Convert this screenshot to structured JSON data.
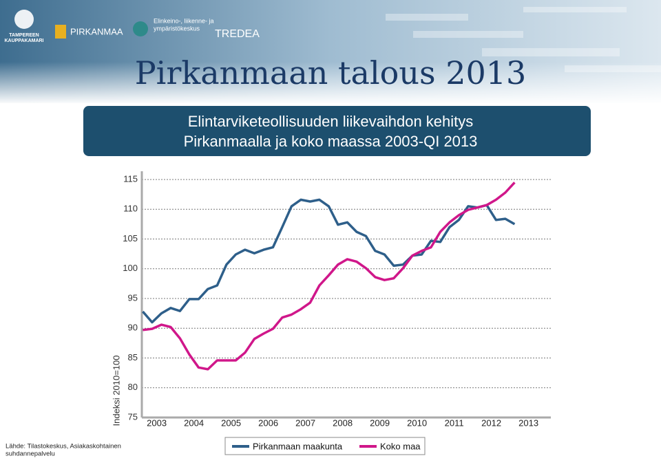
{
  "header": {
    "logos": [
      "TAMPEREEN",
      "KAUPPAKAMARI",
      "PIRKANMAA",
      "Elinkeino-, liikenne- ja",
      "ympäristökeskus",
      "TREDEA"
    ],
    "title": "Pirkanmaan talous 2013"
  },
  "chart_data": {
    "type": "line",
    "title": [
      "Elintarviketeollisuuden liikevaihdon kehitys",
      "Pirkanmaalla ja koko maassa 2003-QI 2013"
    ],
    "y_label": "Indeksi 2010=100",
    "source": [
      "Lähde: Tilastokeskus, Asiakaskohtainen",
      "suhdannepalvelu"
    ],
    "x": [
      2003.125,
      2003.375,
      2003.625,
      2003.875,
      2004.125,
      2004.375,
      2004.625,
      2004.875,
      2005.125,
      2005.375,
      2005.625,
      2005.875,
      2006.125,
      2006.375,
      2006.625,
      2006.875,
      2007.125,
      2007.375,
      2007.625,
      2007.875,
      2008.125,
      2008.375,
      2008.625,
      2008.875,
      2009.125,
      2009.375,
      2009.625,
      2009.875,
      2010.125,
      2010.375,
      2010.625,
      2010.875,
      2011.125,
      2011.375,
      2011.625,
      2011.875,
      2012.125,
      2012.375,
      2012.625,
      2012.875,
      2013.125
    ],
    "series": [
      {
        "name": "Pirkanmaan maakunta",
        "color": "#2e5f8a",
        "values": [
          92.8,
          91.0,
          92.5,
          93.4,
          92.9,
          94.9,
          94.9,
          96.6,
          97.2,
          100.7,
          102.4,
          103.2,
          102.6,
          103.2,
          103.6,
          107.0,
          110.5,
          111.6,
          111.3,
          111.6,
          110.5,
          107.4,
          107.8,
          106.2,
          105.5,
          103.0,
          102.4,
          100.5,
          100.7,
          102.2,
          102.4,
          104.7,
          104.5,
          107.0,
          108.2,
          110.5,
          110.3,
          110.7,
          108.2,
          108.4,
          107.5
        ]
      },
      {
        "name": "Koko maa",
        "color": "#d0178a",
        "values": [
          89.7,
          89.9,
          90.6,
          90.2,
          88.3,
          85.6,
          83.4,
          83.1,
          84.6,
          84.6,
          84.6,
          85.9,
          88.2,
          89.1,
          89.9,
          91.8,
          92.3,
          93.2,
          94.3,
          97.2,
          98.9,
          100.7,
          101.6,
          101.2,
          100.1,
          98.6,
          98.1,
          98.4,
          100.1,
          102.2,
          103.0,
          103.6,
          106.2,
          107.8,
          109.0,
          109.9,
          110.3,
          110.7,
          111.6,
          112.8,
          114.5
        ]
      }
    ],
    "xlim": [
      2003.1,
      2014.1
    ],
    "xticks": [
      {
        "value": 2003.5,
        "label": "2003"
      },
      {
        "value": 2004.5,
        "label": "2004"
      },
      {
        "value": 2005.5,
        "label": "2005"
      },
      {
        "value": 2006.5,
        "label": "2006"
      },
      {
        "value": 2007.5,
        "label": "2007"
      },
      {
        "value": 2008.5,
        "label": "2008"
      },
      {
        "value": 2009.5,
        "label": "2009"
      },
      {
        "value": 2010.5,
        "label": "2010"
      },
      {
        "value": 2011.5,
        "label": "2011"
      },
      {
        "value": 2012.5,
        "label": "2012"
      },
      {
        "value": 2013.5,
        "label": "2013"
      }
    ],
    "ylim": [
      75,
      115
    ],
    "yticks": [
      75,
      80,
      85,
      90,
      95,
      100,
      105,
      110,
      115
    ],
    "grid": true
  }
}
